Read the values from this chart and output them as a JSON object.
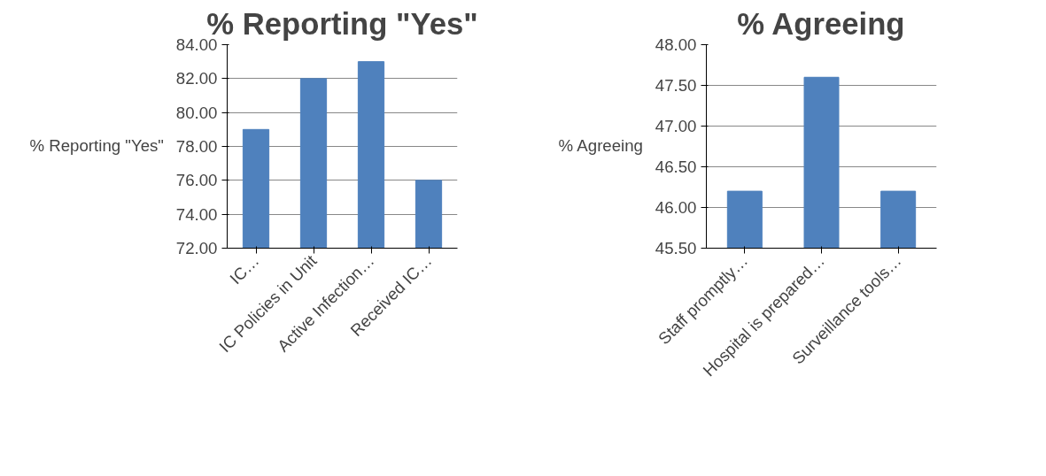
{
  "chart_data": [
    {
      "type": "bar",
      "title": "% Reporting \"Yes\"",
      "categories": [
        "IC…",
        "IC Policies in Unit",
        "Active Infection…",
        "Received IC…"
      ],
      "series": [
        {
          "name": "% Reporting \"Yes\"",
          "color": "#4f81bd",
          "values": [
            79,
            82,
            83,
            76
          ]
        }
      ],
      "ylim": [
        72,
        84
      ],
      "yticks": [
        {
          "value": 72,
          "label": "72.00"
        },
        {
          "value": 74,
          "label": "74.00"
        },
        {
          "value": 76,
          "label": "76.00"
        },
        {
          "value": 78,
          "label": "78.00"
        },
        {
          "value": 80,
          "label": "80.00"
        },
        {
          "value": 82,
          "label": "82.00"
        },
        {
          "value": 84,
          "label": "84.00"
        }
      ],
      "grid": "y",
      "legend": "left"
    },
    {
      "type": "bar",
      "title": "% Agreeing",
      "categories": [
        "Staff promptly…",
        "Hospital is prepared…",
        "Surveillance tools…"
      ],
      "series": [
        {
          "name": "% Agreeing",
          "color": "#4f81bd",
          "values": [
            46.2,
            47.6,
            46.2
          ]
        }
      ],
      "ylim": [
        45.5,
        48
      ],
      "yticks": [
        {
          "value": 45.5,
          "label": "45.50"
        },
        {
          "value": 46,
          "label": "46.00"
        },
        {
          "value": 46.5,
          "label": "46.50"
        },
        {
          "value": 47,
          "label": "47.00"
        },
        {
          "value": 47.5,
          "label": "47.50"
        },
        {
          "value": 48,
          "label": "48.00"
        }
      ],
      "grid": "y",
      "legend": "left"
    }
  ]
}
